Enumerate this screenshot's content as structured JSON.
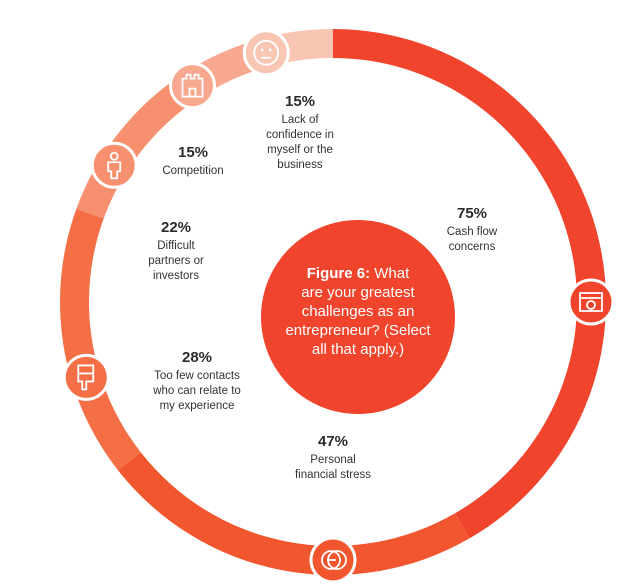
{
  "chart_data": {
    "type": "pie",
    "title_prefix": "Figure 6:",
    "title_lines": [
      "What",
      "are your greatest",
      "challenges as an",
      "entrepreneur? (Select",
      "all that apply.)"
    ],
    "unit": "%",
    "series": [
      {
        "value": 75,
        "label_lines": [
          "Cash flow",
          "concerns"
        ],
        "color": "#f0442c",
        "icon": "cash-register-icon"
      },
      {
        "value": 47,
        "label_lines": [
          "Personal",
          "financial stress"
        ],
        "color": "#f2562f",
        "icon": "coins-icon"
      },
      {
        "value": 28,
        "label_lines": [
          "Too few contacts",
          "who can relate to",
          "my experience"
        ],
        "color": "#f46e46",
        "icon": "thumbs-down-icon"
      },
      {
        "value": 22,
        "label_lines": [
          "Difficult",
          "partners or",
          "investors"
        ],
        "color": "#f7906e",
        "icon": "person-icon"
      },
      {
        "value": 15,
        "label_lines": [
          "Competition"
        ],
        "color": "#f8a88e",
        "icon": "castle-icon"
      },
      {
        "value": 15,
        "label_lines": [
          "Lack of",
          "confidence in",
          "myself or the",
          "business"
        ],
        "color": "#fac6b4",
        "icon": "face-icon"
      }
    ]
  }
}
